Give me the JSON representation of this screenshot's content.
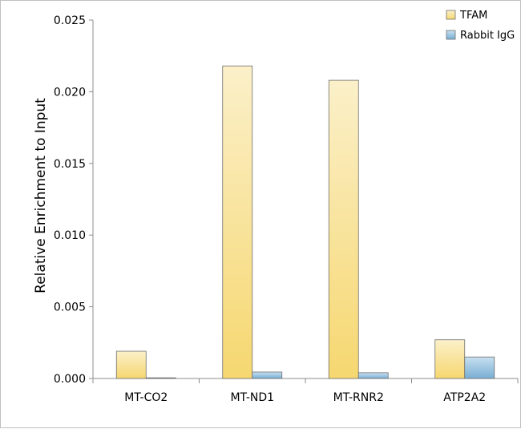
{
  "chart_data": {
    "type": "bar",
    "title": "",
    "xlabel": "",
    "ylabel": "Relative Enrichment to Input",
    "categories": [
      "MT-CO2",
      "MT-ND1",
      "MT-RNR2",
      "ATP2A2"
    ],
    "series": [
      {
        "name": "TFAM",
        "values": [
          0.0019,
          0.0218,
          0.0208,
          0.0027
        ],
        "color": "#f5d97a"
      },
      {
        "name": "Rabbit IgG",
        "values": [
          5e-05,
          0.00045,
          0.0004,
          0.0015
        ],
        "color": "#7fb2d6"
      }
    ],
    "ylim": [
      0,
      0.025
    ],
    "yticks": [
      "0.000",
      "0.005",
      "0.010",
      "0.015",
      "0.020",
      "0.025"
    ],
    "grid": false,
    "legend_position": "top-right"
  }
}
